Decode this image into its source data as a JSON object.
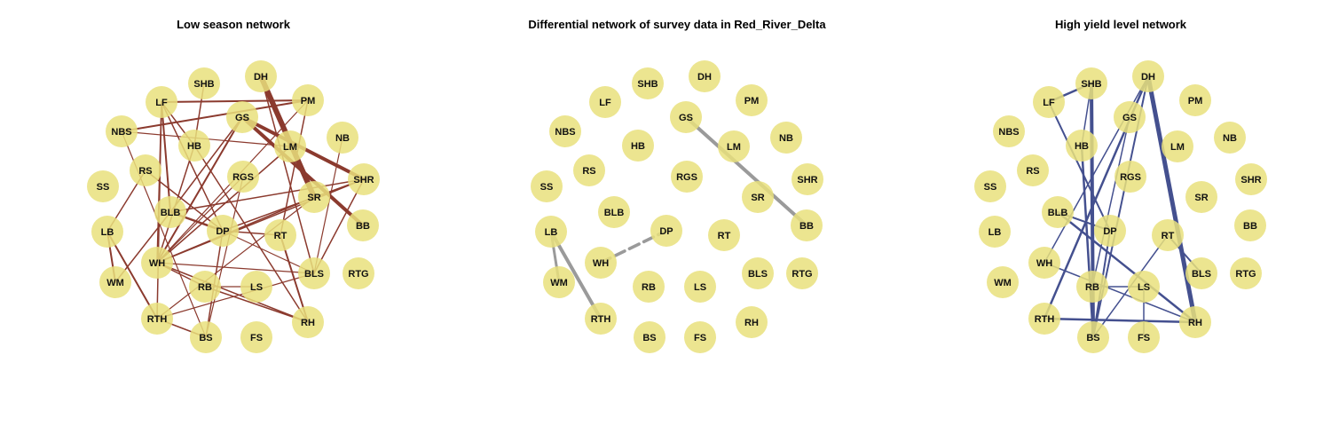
{
  "colors": {
    "node_fill": "#E9E07C",
    "left_edge": "#8B3A2E",
    "middle_edge": "#9A9A9A",
    "right_edge": "#44508F",
    "background": "#FFFFFF"
  },
  "panels": [
    {
      "id": "low",
      "title": "Low season network",
      "edge_color_key": "left_edge",
      "edges": [
        [
          "DH",
          "SR",
          6
        ],
        [
          "GS",
          "SHR",
          4
        ],
        [
          "GS",
          "BB",
          4
        ],
        [
          "LF",
          "PM",
          2
        ],
        [
          "LF",
          "BLB",
          2
        ],
        [
          "LF",
          "DP",
          1.5
        ],
        [
          "LF",
          "WH",
          1.5
        ],
        [
          "LF",
          "RTH",
          1.5
        ],
        [
          "LF",
          "HB",
          1.5
        ],
        [
          "SHB",
          "HB",
          1.5
        ],
        [
          "NBS",
          "PM",
          2
        ],
        [
          "NBS",
          "BS",
          1.2
        ],
        [
          "NBS",
          "LM",
          1.2
        ],
        [
          "LB",
          "RTH",
          2
        ],
        [
          "LB",
          "RS",
          1.5
        ],
        [
          "LB",
          "WM",
          2
        ],
        [
          "RS",
          "DP",
          1.5
        ],
        [
          "HB",
          "RH",
          1.5
        ],
        [
          "BLB",
          "SHR",
          1.5
        ],
        [
          "BLB",
          "DP",
          2.5
        ],
        [
          "BLB",
          "GS",
          1.5
        ],
        [
          "WH",
          "GS",
          2
        ],
        [
          "WH",
          "LM",
          1.5
        ],
        [
          "WH",
          "SHR",
          1.5
        ],
        [
          "WH",
          "SR",
          1.5
        ],
        [
          "WH",
          "RB",
          1.5
        ],
        [
          "WH",
          "RGS",
          1.2
        ],
        [
          "WH",
          "PM",
          1.2
        ],
        [
          "WH",
          "BLS",
          1.2
        ],
        [
          "WH",
          "HB",
          1.5
        ],
        [
          "DP",
          "SHR",
          1.5
        ],
        [
          "DP",
          "RT",
          1.5
        ],
        [
          "DP",
          "BS",
          1.5
        ],
        [
          "RGS",
          "BS",
          1.2
        ],
        [
          "PM",
          "RT",
          1.5
        ],
        [
          "NB",
          "BLS",
          1.2
        ],
        [
          "SR",
          "RTH",
          1.2
        ],
        [
          "RT",
          "RH",
          2
        ],
        [
          "BLS",
          "SHR",
          1.5
        ],
        [
          "BLS",
          "RTH",
          1.2
        ],
        [
          "BLS",
          "DP",
          1.2
        ],
        [
          "DH",
          "BLS",
          1.5
        ],
        [
          "DH",
          "LM",
          1.5
        ],
        [
          "RTH",
          "BS",
          1.5
        ],
        [
          "WM",
          "BLB",
          1.5
        ],
        [
          "RB",
          "RH",
          1.5
        ],
        [
          "LS",
          "RB",
          1.2
        ],
        [
          "RH",
          "WH",
          1.5
        ]
      ]
    },
    {
      "id": "diff",
      "title": "Differential network of survey data in Red_River_Delta",
      "edge_color_key": "middle_edge",
      "edges": [
        [
          "GS",
          "BB",
          4
        ],
        [
          "LB",
          "WM",
          3
        ],
        [
          "LB",
          "RTH",
          4
        ],
        [
          "WH",
          "DP",
          3.5,
          "dashed"
        ]
      ]
    },
    {
      "id": "high",
      "title": "High yield level network",
      "edge_color_key": "right_edge",
      "edges": [
        [
          "LF",
          "SHB",
          2.5
        ],
        [
          "LF",
          "DP",
          2
        ],
        [
          "SHB",
          "BS",
          4
        ],
        [
          "SHB",
          "RB",
          2
        ],
        [
          "SHB",
          "HB",
          1.5
        ],
        [
          "DH",
          "RTH",
          2.5
        ],
        [
          "DH",
          "BS",
          2
        ],
        [
          "DH",
          "WH",
          1.5
        ],
        [
          "DH",
          "RH",
          5
        ],
        [
          "GS",
          "RB",
          1.5
        ],
        [
          "HB",
          "BS",
          2.5
        ],
        [
          "BLB",
          "DP",
          2
        ],
        [
          "BLB",
          "RH",
          2.5
        ],
        [
          "DP",
          "BS",
          2
        ],
        [
          "RT",
          "BLS",
          2
        ],
        [
          "RT",
          "BS",
          1.5
        ],
        [
          "RTH",
          "RH",
          2.5
        ],
        [
          "WH",
          "RH",
          1.5
        ],
        [
          "LS",
          "RB",
          1.5
        ],
        [
          "LS",
          "FS",
          1.5
        ]
      ]
    }
  ]
}
